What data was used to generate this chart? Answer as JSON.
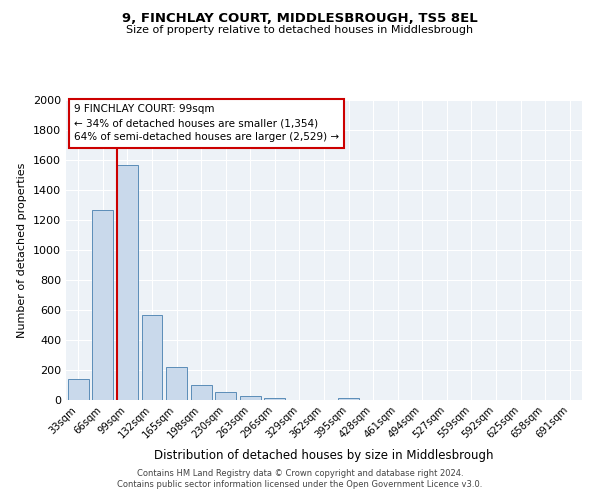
{
  "title": "9, FINCHLAY COURT, MIDDLESBROUGH, TS5 8EL",
  "subtitle": "Size of property relative to detached houses in Middlesbrough",
  "xlabel": "Distribution of detached houses by size in Middlesbrough",
  "ylabel": "Number of detached properties",
  "footnote1": "Contains HM Land Registry data © Crown copyright and database right 2024.",
  "footnote2": "Contains public sector information licensed under the Open Government Licence v3.0.",
  "annotation_line1": "9 FINCHLAY COURT: 99sqm",
  "annotation_line2": "← 34% of detached houses are smaller (1,354)",
  "annotation_line3": "64% of semi-detached houses are larger (2,529) →",
  "bar_labels": [
    "33sqm",
    "66sqm",
    "99sqm",
    "132sqm",
    "165sqm",
    "198sqm",
    "230sqm",
    "263sqm",
    "296sqm",
    "329sqm",
    "362sqm",
    "395sqm",
    "428sqm",
    "461sqm",
    "494sqm",
    "527sqm",
    "559sqm",
    "592sqm",
    "625sqm",
    "658sqm",
    "691sqm"
  ],
  "bar_values": [
    140,
    1265,
    1565,
    570,
    220,
    100,
    55,
    25,
    15,
    0,
    0,
    15,
    0,
    0,
    0,
    0,
    0,
    0,
    0,
    0,
    0
  ],
  "property_bar_index": 2,
  "bar_color": "#c9d9eb",
  "bar_edge_color": "#5b8db8",
  "redline_color": "#cc0000",
  "plot_bg_color": "#edf2f7",
  "ylim": [
    0,
    2000
  ],
  "yticks": [
    0,
    200,
    400,
    600,
    800,
    1000,
    1200,
    1400,
    1600,
    1800,
    2000
  ]
}
